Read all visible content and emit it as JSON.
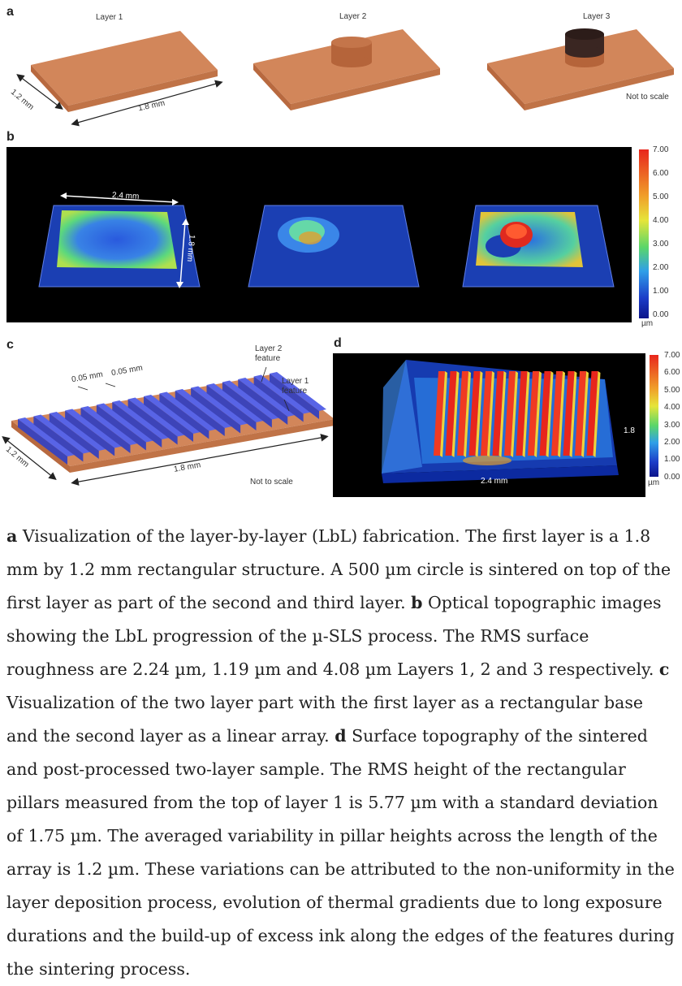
{
  "panels": {
    "a": {
      "label": "a",
      "layers": [
        "Layer 1",
        "Layer 2",
        "Layer 3"
      ],
      "dim_width": "1.2 mm",
      "dim_length": "1.8 mm",
      "note": "Not to scale"
    },
    "b": {
      "label": "b",
      "dim_length": "2.4 mm",
      "dim_width": "1.8 mm",
      "colorbar_ticks": [
        "7.00",
        "6.00",
        "5.00",
        "4.00",
        "3.00",
        "2.00",
        "1.00",
        "0.00"
      ],
      "colorbar_unit": "µm"
    },
    "c": {
      "label": "c",
      "layer2_feature": [
        "Layer 2",
        "feature"
      ],
      "layer1_feature": [
        "Layer 1",
        "feature"
      ],
      "spacing1": "0.05 mm",
      "spacing2": "0.05 mm",
      "dim_width": "1.2 mm",
      "dim_length": "1.8 mm",
      "note": "Not to scale"
    },
    "d": {
      "label": "d",
      "dim_width": "1.8",
      "dim_length": "2.4 mm",
      "colorbar_ticks": [
        "7.00",
        "6.00",
        "5.00",
        "4.00",
        "3.00",
        "2.00",
        "1.00",
        "0.00"
      ],
      "colorbar_unit": "µm"
    }
  },
  "caption": {
    "a_label": "a",
    "a_text": " Visualization of the layer-by-layer (LbL) fabrication. The first layer is a 1.8 mm by 1.2 mm rectangular structure. A 500 µm circle is sintered on top of the first layer as part of the second and third layer. ",
    "b_label": "b",
    "b_text": " Optical topographic images showing the LbL progression of the µ-SLS process. The RMS surface roughness are 2.24 µm, 1.19 µm and 4.08 µm Layers 1, 2 and 3 respectively. ",
    "c_label": "c",
    "c_text": " Visualization of the two layer part with the first layer as a rectangular base and the second layer as a linear array. ",
    "d_label": "d",
    "d_text": " Surface topography of the sintered and post-processed two-layer sample. The RMS height of the rectangular pillars measured from the top of layer 1 is 5.77 µm with a standard deviation of 1.75 µm. The averaged variability in pillar heights across the length of the array is 1.2 µm. These variations can be attributed to the non-uniformity in the layer deposition process, evolution of thermal gradients due to long exposure durations and the build-up of excess ink along the edges of the features during the sintering process."
  },
  "colors": {
    "copper_top": "#d2865a",
    "copper_side": "#b8693f",
    "pillar_blue": "#4a55d8",
    "layer3_dark": "#3a2622"
  }
}
